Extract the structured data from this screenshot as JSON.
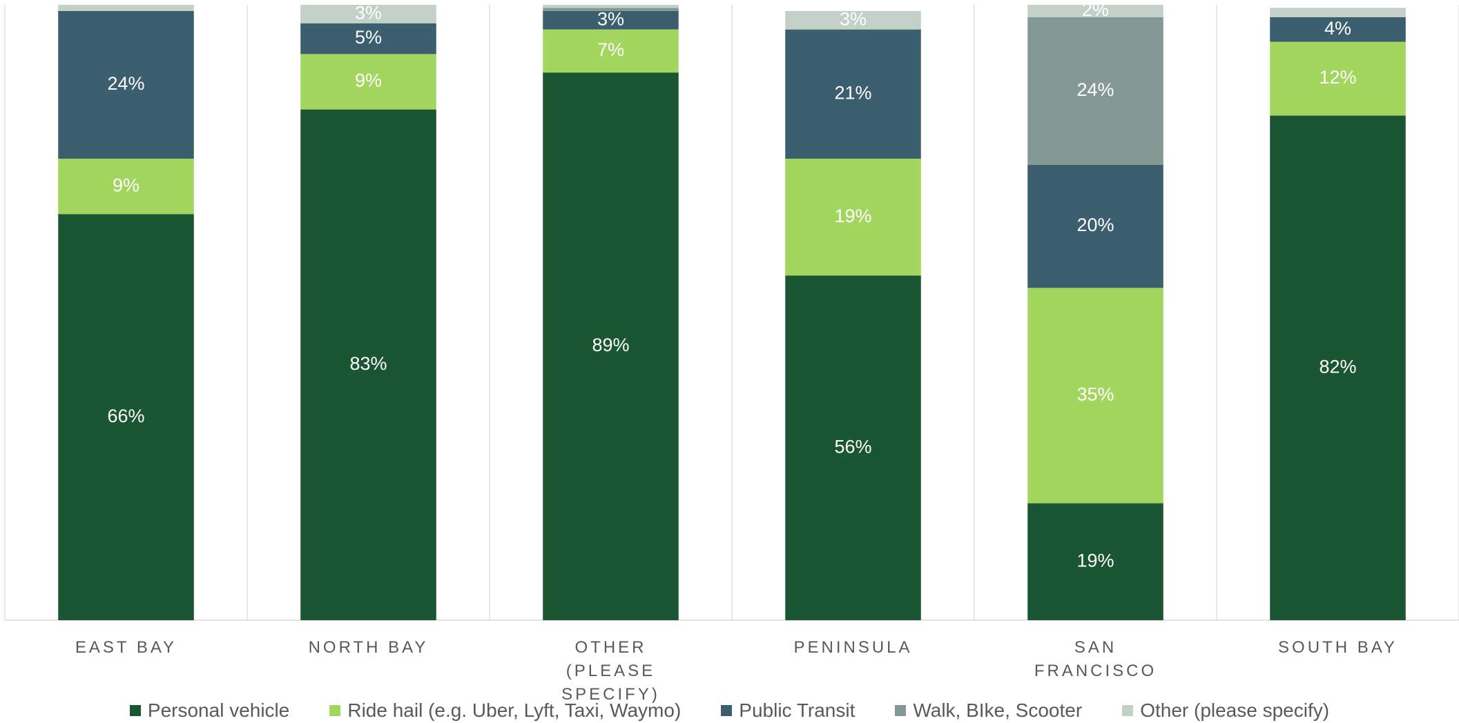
{
  "chart_data": {
    "type": "stacked_bar",
    "categories": [
      "EAST BAY",
      "NORTH BAY",
      "OTHER (PLEASE SPECIFY)",
      "PENINSULA",
      "SAN FRANCISCO",
      "SOUTH BAY"
    ],
    "ylim": [
      0,
      100
    ],
    "legend": "bottom",
    "series": [
      {
        "name": "Personal vehicle",
        "color": "#1b5632",
        "values": [
          66,
          83,
          89,
          56,
          19,
          82
        ],
        "value_labels": [
          "66%",
          "83%",
          "89%",
          "56%",
          "19%",
          "82%"
        ]
      },
      {
        "name": "Ride hail (e.g. Uber, Lyft, Taxi, Waymo)",
        "color": "#a3d65f",
        "values": [
          9,
          9,
          7,
          19,
          35,
          12
        ],
        "value_labels": [
          "9%",
          "9%",
          "7%",
          "19%",
          "35%",
          "12%"
        ]
      },
      {
        "name": "Public Transit",
        "color": "#3b5f6f",
        "values": [
          24,
          5,
          3,
          21,
          20,
          4
        ],
        "value_labels": [
          "24%",
          "5%",
          "3%",
          "21%",
          "20%",
          "4%"
        ]
      },
      {
        "name": "Walk, BIke, Scooter",
        "color": "#859994",
        "values": [
          0,
          0,
          0.5,
          0,
          24,
          0
        ],
        "value_labels": [
          null,
          null,
          null,
          null,
          "24%",
          null
        ]
      },
      {
        "name": "Other (please specify)",
        "color": "#c3d0c8",
        "values": [
          1,
          3,
          0.5,
          3,
          2,
          1.5
        ],
        "value_labels": [
          null,
          "3%",
          null,
          "3%",
          "2%",
          null
        ]
      }
    ]
  }
}
